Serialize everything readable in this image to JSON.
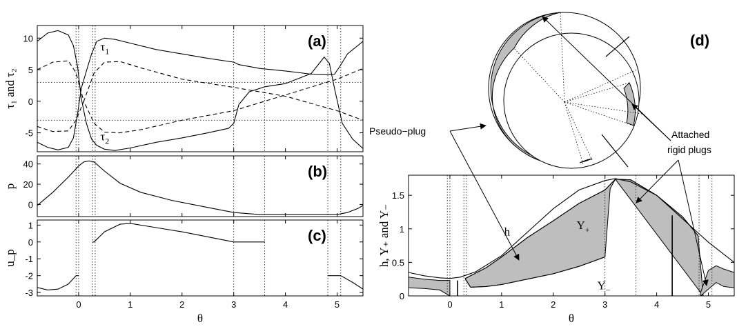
{
  "colors": {
    "ink": "#000000",
    "fill": "#bebebe",
    "background": "#ffffff",
    "grid": "#000000"
  },
  "chart_data": [
    {
      "id": "a",
      "type": "line",
      "panel_tag": "(a)",
      "ylabel": "τ₁ and τ₂",
      "xlim": [
        -0.8,
        5.5
      ],
      "ylim": [
        -8,
        12
      ],
      "yticks": [
        "10",
        "5",
        "0",
        "-5"
      ],
      "ytick_values": [
        10,
        5,
        0,
        -5
      ],
      "vertical_dotted_lines": [
        -0.05,
        0.0,
        0.27,
        0.32,
        3.0,
        3.6,
        4.82,
        5.07
      ],
      "horizontal_dotted_lines": [
        3,
        -3
      ],
      "series": [
        {
          "name": "τ₁",
          "style": "solid",
          "x": [
            -0.8,
            -0.6,
            -0.4,
            -0.2,
            -0.1,
            -0.02,
            0.05,
            0.15,
            0.25,
            0.35,
            0.5,
            0.7,
            1.0,
            1.5,
            2.0,
            2.5,
            3.0,
            3.1,
            3.5,
            4.0,
            4.5,
            4.8,
            4.95,
            5.05,
            5.2,
            5.5
          ],
          "y": [
            -6.5,
            -7.3,
            -7.7,
            -7.3,
            -5.8,
            -2,
            2,
            4.8,
            7.5,
            9.5,
            10,
            9.8,
            9.2,
            8.2,
            7.5,
            6.8,
            6.2,
            5.8,
            5.2,
            4.8,
            4.3,
            4.2,
            4.3,
            5.5,
            7.5,
            9.5
          ]
        },
        {
          "name": "τ₂",
          "style": "solid",
          "x": [
            -0.8,
            -0.6,
            -0.4,
            -0.2,
            -0.1,
            -0.02,
            0.05,
            0.15,
            0.25,
            0.35,
            0.5,
            0.7,
            1.0,
            1.5,
            2.0,
            2.5,
            2.9,
            3.0,
            3.1,
            3.3,
            3.6,
            4.0,
            4.5,
            4.75,
            4.85,
            4.95,
            5.1,
            5.3,
            5.5
          ],
          "y": [
            9.5,
            10.8,
            11.2,
            10.5,
            8.8,
            5.5,
            0.5,
            -3.5,
            -6,
            -7,
            -7.6,
            -7.8,
            -7.4,
            -6.5,
            -5.8,
            -5,
            -4.3,
            -3.5,
            -0.5,
            1.5,
            2.3,
            2.8,
            4.4,
            7,
            6,
            2,
            -3.5,
            -6,
            -7.5
          ]
        },
        {
          "name": "",
          "style": "dashed",
          "x": [
            -0.8,
            -0.5,
            -0.2,
            -0.05,
            0.1,
            0.3,
            0.5,
            0.8,
            1.2,
            2.0,
            3.0,
            4.0,
            5.0,
            5.5
          ],
          "y": [
            5,
            6.2,
            6.4,
            4.5,
            0,
            4.5,
            6.2,
            6.3,
            5.3,
            3.5,
            2.2,
            0.8,
            -1.5,
            -3
          ]
        },
        {
          "name": "",
          "style": "dashed",
          "x": [
            -0.8,
            -0.5,
            -0.2,
            -0.05,
            0.1,
            0.3,
            0.5,
            0.8,
            1.2,
            2.0,
            3.0,
            4.0,
            5.0,
            5.5
          ],
          "y": [
            -4,
            -4.8,
            -4.7,
            -3,
            0,
            -3.5,
            -4.9,
            -5,
            -4.5,
            -3,
            -1.5,
            1,
            3.5,
            5.2
          ]
        }
      ],
      "annotations": [
        {
          "text": "τ",
          "sub": "1",
          "x": 0.42,
          "y": 8.0
        },
        {
          "text": "τ",
          "sub": "2",
          "x": 0.42,
          "y": -6.2
        }
      ]
    },
    {
      "id": "b",
      "type": "line",
      "panel_tag": "(b)",
      "ylabel": "p",
      "xlim": [
        -0.8,
        5.5
      ],
      "ylim": [
        -12,
        48
      ],
      "yticks": [
        "40",
        "20",
        "0"
      ],
      "ytick_values": [
        40,
        20,
        0
      ],
      "vertical_dotted_lines": [
        -0.05,
        0.0,
        0.27,
        0.32,
        3.0,
        3.6,
        4.82,
        5.07
      ],
      "series": [
        {
          "name": "",
          "style": "solid",
          "x": [
            -0.8,
            -0.5,
            -0.2,
            0.0,
            0.1,
            0.2,
            0.3,
            0.5,
            0.8,
            1.2,
            1.8,
            2.5,
            3.0,
            3.5,
            4.0,
            4.5,
            5.0,
            5.2,
            5.4,
            5.5
          ],
          "y": [
            -1,
            12,
            27,
            38,
            42,
            43,
            42,
            33,
            21,
            12,
            4,
            -3,
            -8,
            -10,
            -10,
            -10,
            -10,
            -8,
            -4,
            -1
          ]
        }
      ]
    },
    {
      "id": "c",
      "type": "line",
      "panel_tag": "(c)",
      "ylabel": "u_p",
      "xlim": [
        -0.8,
        5.5
      ],
      "ylim": [
        -3.2,
        1.3
      ],
      "yticks": [
        "1",
        "0",
        "-1",
        "-2",
        "-3"
      ],
      "ytick_values": [
        1,
        0,
        -1,
        -2,
        -3
      ],
      "xticks": [
        "0",
        "1",
        "2",
        "3",
        "4",
        "5"
      ],
      "xtick_values": [
        0,
        1,
        2,
        3,
        4,
        5
      ],
      "xlabel": "θ",
      "vertical_dotted_lines": [
        -0.05,
        0.0,
        0.27,
        0.32,
        3.0,
        3.6,
        4.82,
        5.07
      ],
      "series": [
        {
          "name": "",
          "style": "solid",
          "x": [
            -0.8,
            -0.6,
            -0.4,
            -0.2,
            -0.05
          ],
          "y": [
            -2.7,
            -2.85,
            -2.8,
            -2.5,
            -2.0
          ]
        },
        {
          "name": "",
          "style": "solid",
          "x": [
            -0.05,
            0.0
          ],
          "y": [
            -2.0,
            -2.0
          ]
        },
        {
          "name": "",
          "style": "solid",
          "x": [
            0.27,
            0.3,
            0.5,
            0.8,
            1.0,
            1.5,
            2.0,
            2.5,
            3.0
          ],
          "y": [
            0,
            0,
            0.6,
            1.05,
            1.1,
            0.85,
            0.6,
            0.3,
            0
          ]
        },
        {
          "name": "",
          "style": "solid",
          "x": [
            3.0,
            3.6
          ],
          "y": [
            0,
            0
          ]
        },
        {
          "name": "",
          "style": "solid",
          "x": [
            4.82,
            5.07,
            5.3,
            5.5
          ],
          "y": [
            -2.0,
            -2.0,
            -2.4,
            -2.8
          ]
        }
      ]
    },
    {
      "id": "d",
      "type": "area",
      "panel_tag": "(d)",
      "ylabel": "h, Y₊ and Y₋",
      "xlabel": "θ",
      "xlim": [
        -0.8,
        5.5
      ],
      "ylim": [
        0,
        1.8
      ],
      "yticks": [
        "1.5",
        "1",
        "0.5",
        "0"
      ],
      "ytick_values": [
        1.5,
        1.0,
        0.5,
        0.0
      ],
      "xticks": [
        "0",
        "1",
        "2",
        "3",
        "4",
        "5"
      ],
      "xtick_values": [
        0,
        1,
        2,
        3,
        4,
        5
      ],
      "vertical_dotted_lines": [
        -0.05,
        0.0,
        0.27,
        0.32,
        3.0,
        3.6,
        4.82,
        5.07
      ],
      "solid_verticals": [
        {
          "x": 0.15,
          "y": [
            0.0,
            0.23
          ]
        },
        {
          "x": 4.3,
          "y": [
            0.0,
            1.2
          ]
        }
      ],
      "series": [
        {
          "name": "h",
          "style": "solid",
          "x": [
            -0.8,
            -0.5,
            -0.2,
            0.0,
            0.2,
            0.5,
            1.0,
            1.5,
            2.0,
            2.5,
            3.0,
            3.2,
            3.5,
            4.0,
            4.5,
            5.0,
            5.5
          ],
          "y": [
            0.35,
            0.3,
            0.27,
            0.26,
            0.28,
            0.36,
            0.6,
            0.95,
            1.3,
            1.58,
            1.72,
            1.75,
            1.7,
            1.5,
            1.15,
            0.8,
            0.5
          ]
        },
        {
          "name": "Y₊",
          "style": "solid",
          "x": [
            0.3,
            0.4,
            0.7,
            1.0,
            1.5,
            2.0,
            2.5,
            2.8,
            3.0,
            3.2,
            3.5,
            4.0,
            4.5,
            4.8
          ],
          "y": [
            0.26,
            0.3,
            0.42,
            0.58,
            0.87,
            1.12,
            1.38,
            1.5,
            1.58,
            1.74,
            1.73,
            1.5,
            1.18,
            0.9
          ]
        },
        {
          "name": "Y₋",
          "style": "solid",
          "x": [
            0.3,
            0.4,
            0.7,
            1.0,
            1.5,
            2.0,
            2.5,
            3.0
          ],
          "y": [
            0.25,
            0.13,
            0.14,
            0.17,
            0.25,
            0.33,
            0.44,
            0.58
          ]
        }
      ],
      "shaded_regions": [
        {
          "upper": {
            "x": [
              0.3,
              0.4,
              0.7,
              1.0,
              1.5,
              2.0,
              2.5,
              2.8,
              3.0,
              3.2,
              3.5,
              4.0,
              4.5,
              4.8,
              4.9
            ],
            "y": [
              0.26,
              0.3,
              0.42,
              0.58,
              0.87,
              1.12,
              1.38,
              1.5,
              1.58,
              1.74,
              1.73,
              1.5,
              1.18,
              0.9,
              0.0
            ]
          },
          "lower": {
            "x": [
              0.3,
              0.4,
              0.7,
              1.0,
              1.5,
              2.0,
              2.5,
              3.0,
              3.1,
              3.2
            ],
            "y": [
              0.25,
              0.13,
              0.14,
              0.17,
              0.25,
              0.33,
              0.44,
              0.58,
              1.6,
              1.74
            ]
          }
        },
        {
          "upper": {
            "x": [
              -0.8,
              -0.5,
              -0.2,
              0.0
            ],
            "y": [
              0.28,
              0.25,
              0.23,
              0.23
            ]
          },
          "lower": {
            "x": [
              -0.8,
              -0.5,
              -0.2,
              0.0
            ],
            "y": [
              0.12,
              0.11,
              0.09,
              0.0
            ]
          }
        },
        {
          "upper": {
            "x": [
              4.85,
              5.0,
              5.15,
              5.3,
              5.5
            ],
            "y": [
              0.05,
              0.38,
              0.45,
              0.4,
              0.35
            ]
          },
          "lower": {
            "x": [
              4.85,
              5.0,
              5.15,
              5.3,
              5.5
            ],
            "y": [
              0.0,
              0.1,
              0.2,
              0.14,
              0.12
            ]
          }
        }
      ],
      "annotations": [
        {
          "text": "h",
          "x": 1.05,
          "y": 0.9
        },
        {
          "text": "Y",
          "sub": "+",
          "x": 2.45,
          "y": 1.0
        },
        {
          "text": "Y",
          "sub": "−",
          "x": 2.85,
          "y": 0.1
        }
      ],
      "callouts": [
        {
          "text": "Pseudo−plug"
        },
        {
          "text": "Attached"
        },
        {
          "text": "rigid plugs"
        }
      ]
    }
  ]
}
